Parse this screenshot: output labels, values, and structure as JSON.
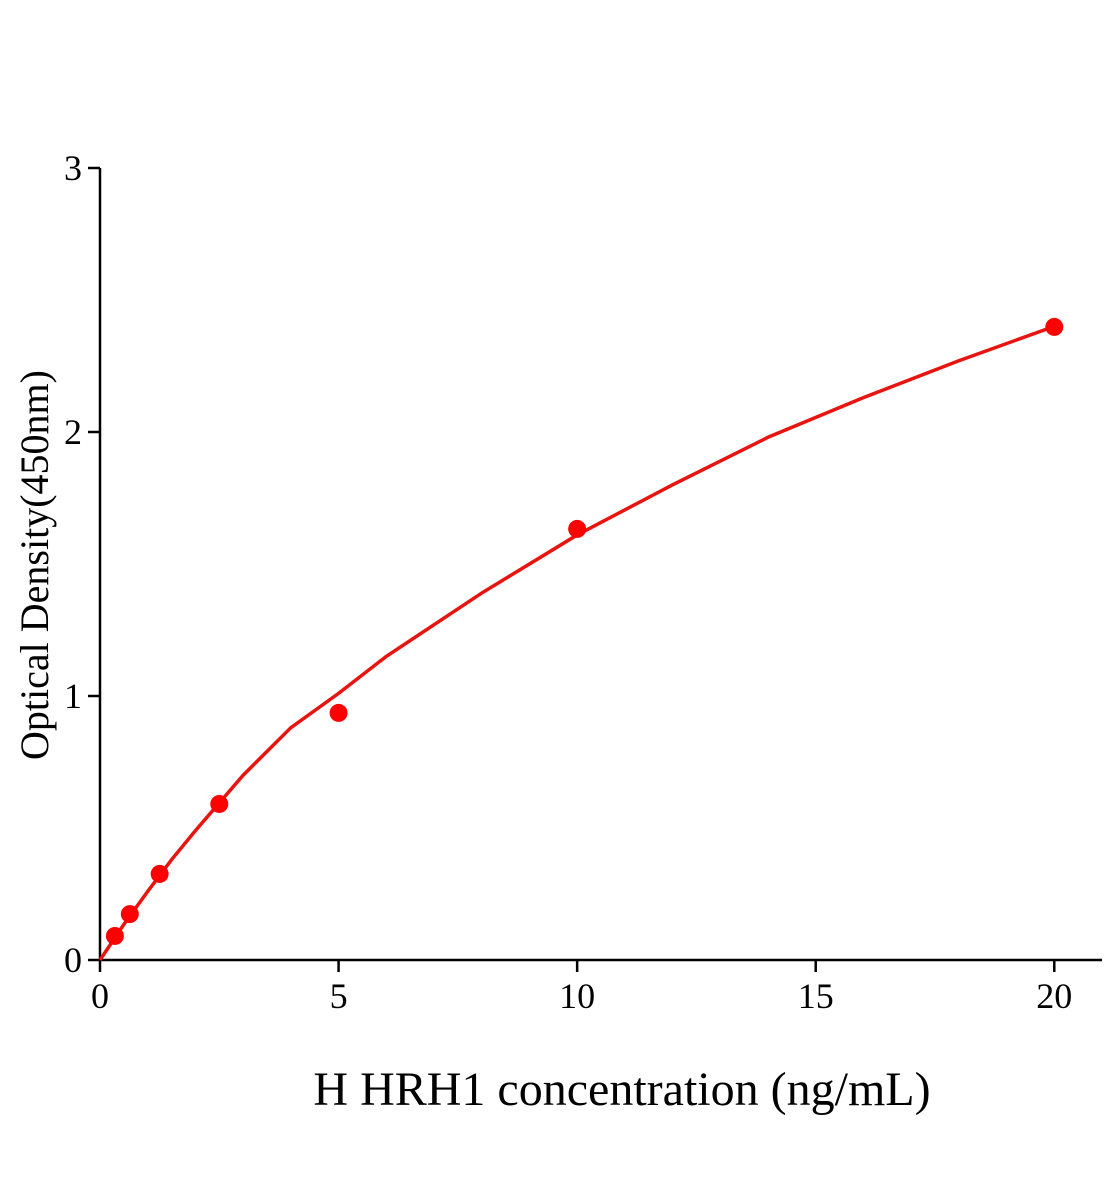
{
  "chart_data": {
    "type": "scatter",
    "xlabel": "H HRH1 concentration (ng/mL)",
    "ylabel": "Optical Density(450nm)",
    "xlim": [
      0,
      21
    ],
    "ylim": [
      0,
      3
    ],
    "xticks": [
      0,
      5,
      10,
      15,
      20
    ],
    "yticks": [
      0,
      1,
      2,
      3
    ],
    "series": [
      {
        "color": "#ff0000",
        "x": [
          0.3125,
          0.625,
          1.25,
          2.5,
          5,
          10,
          20
        ],
        "values": [
          0.091,
          0.174,
          0.326,
          0.591,
          0.936,
          1.633,
          2.398
        ]
      }
    ],
    "fit": {
      "color": "#e8140f",
      "x": [
        0,
        0.5,
        1,
        1.5,
        2,
        3,
        4,
        5,
        6,
        8,
        10,
        12,
        14,
        16,
        18,
        20
      ],
      "values": [
        0,
        0.135,
        0.26,
        0.38,
        0.49,
        0.7,
        0.88,
        1.01,
        1.15,
        1.39,
        1.61,
        1.8,
        1.98,
        2.13,
        2.27,
        2.4
      ]
    }
  }
}
